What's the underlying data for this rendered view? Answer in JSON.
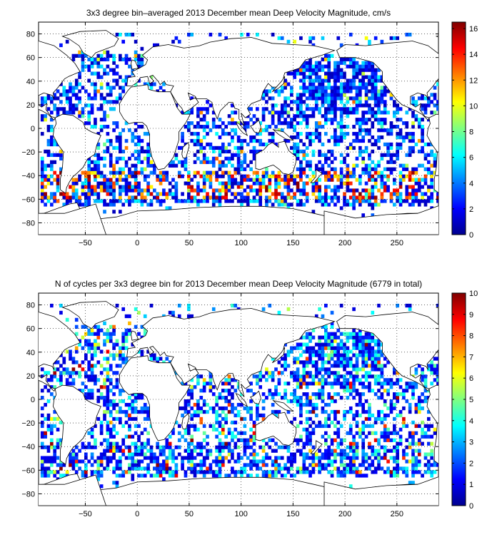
{
  "chart_data": [
    {
      "type": "heatmap",
      "title": "3x3 degree bin–averaged 2013 December mean Deep Velocity Magnitude, cm/s",
      "xlabel": "",
      "ylabel": "",
      "xlim": [
        -95,
        290
      ],
      "ylim": [
        -90,
        90
      ],
      "xticks": [
        -50,
        0,
        50,
        100,
        150,
        200,
        250
      ],
      "yticks": [
        -80,
        -60,
        -40,
        -20,
        0,
        20,
        40,
        60,
        80
      ],
      "grid": true,
      "colormap": "jet",
      "colorbar": {
        "min": 0,
        "max": 16.5,
        "ticks": [
          0,
          2,
          4,
          6,
          8,
          10,
          12,
          14,
          16
        ]
      },
      "cell_size_deg": 3,
      "coverage": "sparse scattered 3x3 degree bins over all ocean basins, densest in the North Pacific and Southern Ocean",
      "dominant_values": "mostly 2-6 cm/s (blue/cyan); highest values 12-16 cm/s (red) in the Antarctic Circumpolar Current near -40 to -60 latitude"
    },
    {
      "type": "heatmap",
      "title": "N of cycles per 3x3 degree bin for 2013 December mean Deep Velocity Magnitude (6779 in total)",
      "xlabel": "",
      "ylabel": "",
      "xlim": [
        -95,
        290
      ],
      "ylim": [
        -90,
        90
      ],
      "xticks": [
        -50,
        0,
        50,
        100,
        150,
        200,
        250
      ],
      "yticks": [
        -80,
        -60,
        -40,
        -20,
        0,
        20,
        40,
        60,
        80
      ],
      "grid": true,
      "colormap": "jet",
      "colorbar": {
        "min": 0,
        "max": 10,
        "ticks": [
          0,
          1,
          2,
          3,
          4,
          5,
          6,
          7,
          8,
          9,
          10
        ]
      },
      "cell_size_deg": 3,
      "total_cycles": 6779,
      "dominant_values": "mostly 1-4 cycles per bin (blue/cyan), occasional 6-10 (orange/red) in the western Pacific and Indian Ocean"
    }
  ],
  "colors": {
    "jet_stops": [
      "#00008f",
      "#0000ff",
      "#0080ff",
      "#00ffff",
      "#80ff80",
      "#ffff00",
      "#ff8000",
      "#ff0000",
      "#800000"
    ],
    "land_outline": "#000000",
    "grid": "#000000"
  }
}
